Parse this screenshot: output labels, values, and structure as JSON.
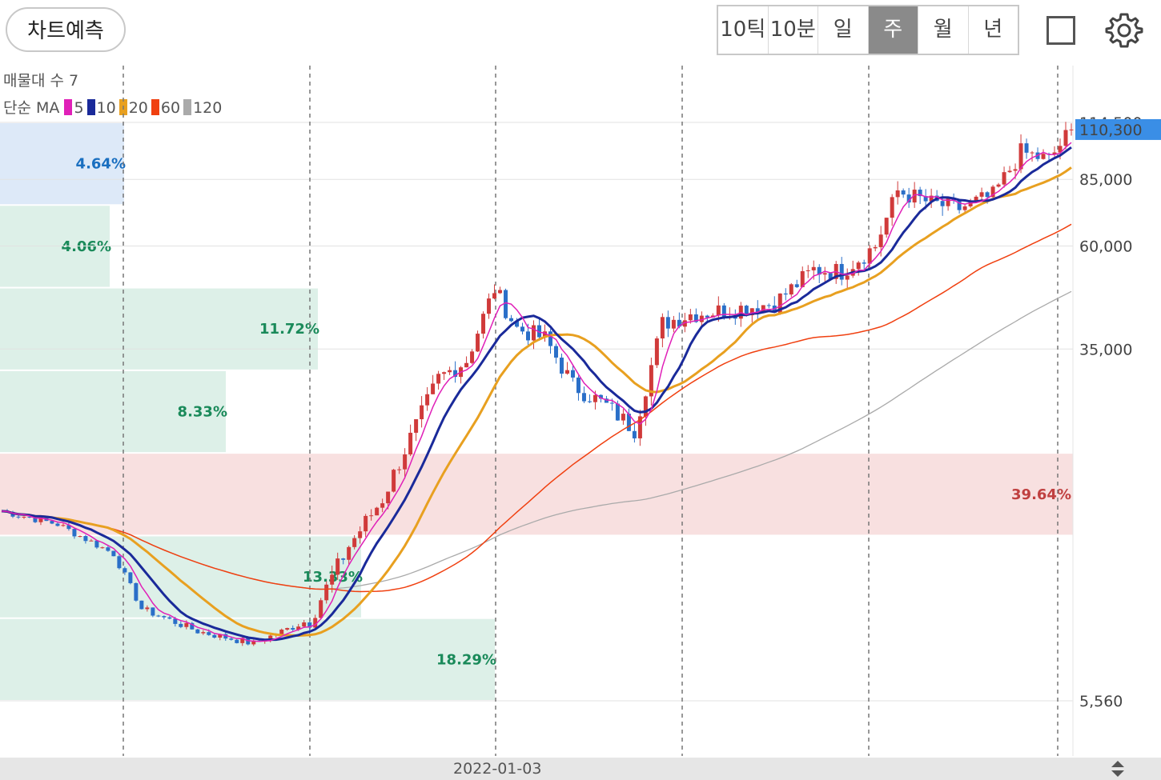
{
  "toolbar": {
    "predict_label": "차트예측",
    "periods": [
      "10틱",
      "10분",
      "일",
      "주",
      "월",
      "년"
    ],
    "active_period": "주",
    "square_icon": "fullscreen-square-icon",
    "gear_icon": "settings-gear-icon"
  },
  "legend": {
    "volume_profile_label": "매물대 수 7",
    "ma_prefix": "단순 MA",
    "ma": [
      {
        "period": "5",
        "color": "#e020b8"
      },
      {
        "period": "10",
        "color": "#1a2a9a"
      },
      {
        "period": "20",
        "color": "#e8a020"
      },
      {
        "period": "60",
        "color": "#f04010"
      },
      {
        "period": "120",
        "color": "#aaaaaa"
      }
    ]
  },
  "date_axis": {
    "label": "2022-01-03"
  },
  "scroll_icon": "scroll-updown-icon",
  "chart_data": {
    "type": "candlestick",
    "timeframe": "weekly",
    "y_scale": "log",
    "y_ticks": [
      {
        "value": 114500,
        "label": "114,500"
      },
      {
        "value": 85000,
        "label": "85,000"
      },
      {
        "value": 60000,
        "label": "60,000"
      },
      {
        "value": 35000,
        "label": "35,000"
      },
      {
        "value": 5560,
        "label": "5,560"
      }
    ],
    "current_price": {
      "value": 110300,
      "label": "110,300",
      "color": "#3a8ee6"
    },
    "volume_profile": [
      {
        "percent": "4.64%",
        "color": "#1a6fc0",
        "fill": "#dde9f8"
      },
      {
        "percent": "4.06%",
        "color": "#1a8a5a",
        "fill": "#ddf0e8"
      },
      {
        "percent": "11.72%",
        "color": "#1a8a5a",
        "fill": "#ddf0e8"
      },
      {
        "percent": "8.33%",
        "color": "#1a8a5a",
        "fill": "#ddf0e8"
      },
      {
        "percent": "39.64%",
        "color": "#c04040",
        "fill": "#f8e0e0"
      },
      {
        "percent": "13.33%",
        "color": "#1a8a5a",
        "fill": "#ddf0e8"
      },
      {
        "percent": "18.29%",
        "color": "#1a8a5a",
        "fill": "#ddf0e8"
      }
    ],
    "up_color": "#d03a3a",
    "down_color": "#2a6fc8",
    "price_path": [
      {
        "week": 0,
        "close": 15000
      },
      {
        "week": 10,
        "close": 14000
      },
      {
        "week": 20,
        "close": 12000
      },
      {
        "week": 25,
        "close": 9000
      },
      {
        "week": 35,
        "close": 8000
      },
      {
        "week": 45,
        "close": 7500
      },
      {
        "week": 55,
        "close": 8500
      },
      {
        "week": 62,
        "close": 12500
      },
      {
        "week": 68,
        "close": 16000
      },
      {
        "week": 73,
        "close": 22000
      },
      {
        "week": 78,
        "close": 30000
      },
      {
        "week": 83,
        "close": 33000
      },
      {
        "week": 88,
        "close": 48000
      },
      {
        "week": 92,
        "close": 39000
      },
      {
        "week": 97,
        "close": 37000
      },
      {
        "week": 102,
        "close": 29000
      },
      {
        "week": 108,
        "close": 26000
      },
      {
        "week": 113,
        "close": 23000
      },
      {
        "week": 118,
        "close": 40000
      },
      {
        "week": 123,
        "close": 42000
      },
      {
        "week": 130,
        "close": 43000
      },
      {
        "week": 138,
        "close": 44500
      },
      {
        "week": 145,
        "close": 53000
      },
      {
        "week": 150,
        "close": 52500
      },
      {
        "week": 156,
        "close": 60000
      },
      {
        "week": 160,
        "close": 80000
      },
      {
        "week": 166,
        "close": 75000
      },
      {
        "week": 171,
        "close": 73000
      },
      {
        "week": 177,
        "close": 78000
      },
      {
        "week": 182,
        "close": 98000
      },
      {
        "week": 187,
        "close": 94000
      },
      {
        "week": 191,
        "close": 110300
      }
    ]
  }
}
